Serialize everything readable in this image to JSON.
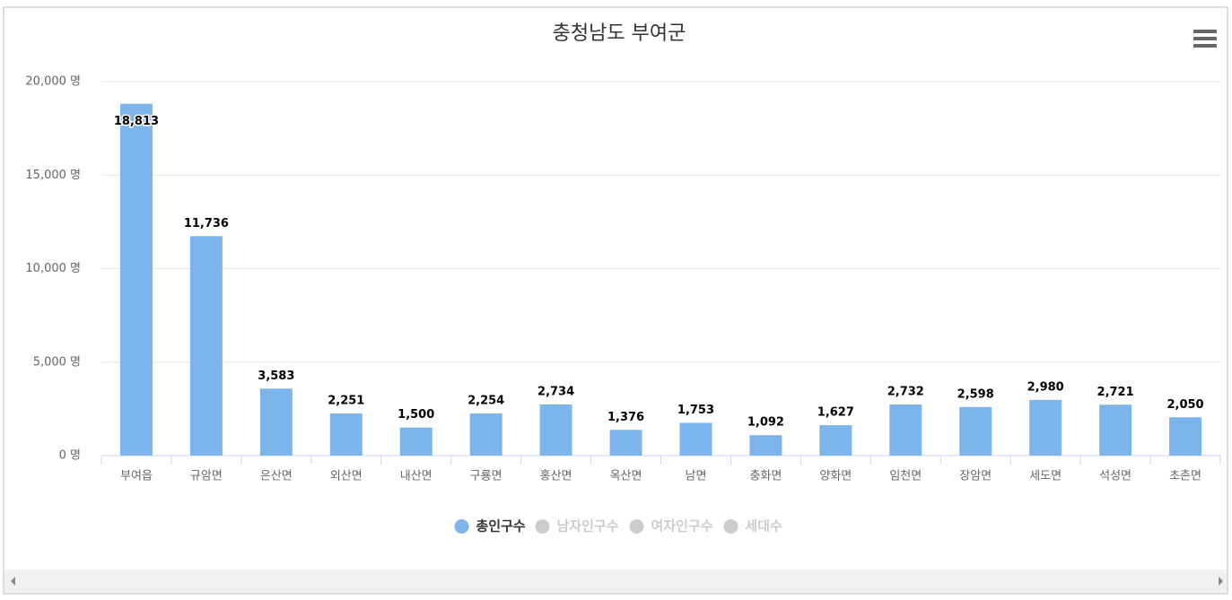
{
  "chart_data": {
    "type": "bar",
    "title": "충청남도 부여군",
    "categories": [
      "부여읍",
      "규암면",
      "은산면",
      "외산면",
      "내산면",
      "구룡면",
      "홍산면",
      "옥산면",
      "남면",
      "충화면",
      "양화면",
      "임천면",
      "장암면",
      "세도면",
      "석성면",
      "초촌면"
    ],
    "series": [
      {
        "name": "총인구수",
        "color": "#7cb5ec",
        "values": [
          18813,
          11736,
          3583,
          2251,
          1500,
          2254,
          2734,
          1376,
          1753,
          1092,
          1627,
          2732,
          2598,
          2980,
          2721,
          2050
        ],
        "value_labels": [
          "18,813",
          "11,736",
          "3,583",
          "2,251",
          "1,500",
          "2,254",
          "2,734",
          "1,376",
          "1,753",
          "1,092",
          "1,627",
          "2,732",
          "2,598",
          "2,980",
          "2,721",
          "2,050"
        ]
      }
    ],
    "hidden_series": [
      "남자인구수",
      "여자인구수",
      "세대수"
    ],
    "ylim": [
      0,
      20000
    ],
    "yticks": [
      {
        "value": 0,
        "label": "0 명"
      },
      {
        "value": 5000,
        "label": "5,000 명"
      },
      {
        "value": 10000,
        "label": "10,000 명"
      },
      {
        "value": 15000,
        "label": "15,000 명"
      },
      {
        "value": 20000,
        "label": "20,000 명"
      }
    ],
    "grid": true
  }
}
